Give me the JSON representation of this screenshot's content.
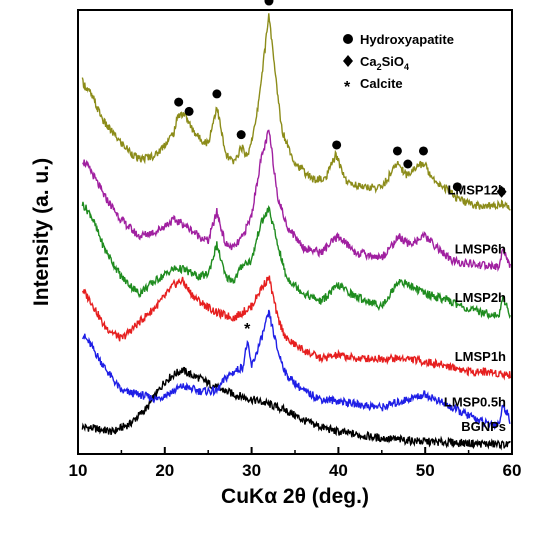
{
  "chart_data": {
    "type": "line",
    "xlabel": "CuKα 2θ (deg.)",
    "ylabel": "Intensity (a. u.)",
    "xlim": [
      10,
      60
    ],
    "y_ticks_shown": false,
    "grid": false,
    "x_ticks": [
      10,
      20,
      30,
      40,
      50,
      60
    ],
    "legend": {
      "placement": "top-right",
      "entries": [
        {
          "marker": "circle",
          "label": "Hydroxyapatite"
        },
        {
          "marker": "diamond",
          "label_main": "Ca",
          "label_sub1": "2",
          "label_mid": "SiO",
          "label_sub2": "4",
          "label": "Ca2SiO4"
        },
        {
          "marker": "asterisk",
          "label": "Calcite"
        }
      ]
    },
    "series": [
      {
        "name": "BGNPs",
        "color": "#000000",
        "x": [
          10.5,
          12,
          14,
          16,
          18,
          20,
          21,
          22,
          23,
          24,
          26,
          28,
          30,
          32,
          34,
          36,
          38,
          40,
          45,
          50,
          55,
          59.8
        ],
        "y": [
          0.08,
          0.07,
          0.05,
          0.1,
          0.2,
          0.36,
          0.4,
          0.43,
          0.4,
          0.38,
          0.32,
          0.28,
          0.25,
          0.22,
          0.18,
          0.12,
          0.08,
          0.05,
          0.01,
          -0.01,
          -0.02,
          -0.03
        ]
      },
      {
        "name": "LMSP0.5h",
        "color": "#1f1fe6",
        "x": [
          10.5,
          11.5,
          13,
          15,
          17,
          19,
          21,
          22,
          24,
          26,
          27,
          28,
          29,
          29.5,
          30,
          31,
          32,
          33,
          34,
          36,
          38,
          40,
          42,
          45,
          48,
          50,
          53,
          55,
          57,
          58.5,
          59,
          59.8
        ],
        "y": [
          0.65,
          0.58,
          0.45,
          0.3,
          0.28,
          0.25,
          0.3,
          0.33,
          0.3,
          0.3,
          0.38,
          0.42,
          0.45,
          0.6,
          0.45,
          0.6,
          0.78,
          0.55,
          0.4,
          0.3,
          0.25,
          0.24,
          0.22,
          0.2,
          0.25,
          0.28,
          0.2,
          0.15,
          0.1,
          0.1,
          0.22,
          0.12
        ]
      },
      {
        "name": "LMSP1h",
        "color": "#e61f1f",
        "x": [
          10.5,
          11.5,
          13,
          15,
          17,
          19,
          20,
          21,
          22,
          23,
          24,
          26,
          28,
          30,
          31,
          32,
          33,
          34,
          36,
          38,
          40,
          42,
          45,
          48,
          50,
          53,
          55,
          57,
          59.8
        ],
        "y": [
          0.92,
          0.85,
          0.7,
          0.62,
          0.72,
          0.82,
          0.88,
          0.95,
          0.98,
          0.9,
          0.85,
          0.78,
          0.75,
          0.82,
          0.92,
          1.0,
          0.75,
          0.62,
          0.55,
          0.5,
          0.52,
          0.5,
          0.5,
          0.5,
          0.48,
          0.45,
          0.42,
          0.42,
          0.4
        ]
      },
      {
        "name": "LMSP2h",
        "color": "#1f8c1f",
        "x": [
          10.5,
          11.5,
          13,
          15,
          17,
          19,
          21,
          22,
          24,
          25,
          26,
          27,
          28,
          29,
          30,
          31,
          32,
          33,
          34,
          36,
          38,
          40,
          42,
          45,
          47,
          50,
          53,
          55,
          57,
          58.5,
          59,
          59.8
        ],
        "y": [
          1.45,
          1.38,
          1.18,
          1.0,
          0.9,
          0.98,
          1.05,
          1.05,
          1.0,
          1.02,
          1.2,
          1.0,
          0.98,
          1.08,
          1.1,
          1.32,
          1.42,
          1.2,
          1.0,
          0.9,
          0.85,
          0.95,
          0.88,
          0.82,
          0.98,
          0.9,
          0.85,
          0.8,
          0.78,
          0.76,
          0.88,
          0.76
        ]
      },
      {
        "name": "LMSP6h",
        "color": "#a020a0",
        "x": [
          10.5,
          11.5,
          13,
          15,
          17,
          19,
          21,
          22,
          24,
          25,
          26,
          27,
          28,
          29,
          30,
          31,
          32,
          33,
          34,
          36,
          38,
          40,
          42,
          45,
          47,
          48,
          50,
          53,
          55,
          57,
          58.5,
          59,
          59.8
        ],
        "y": [
          1.72,
          1.65,
          1.5,
          1.35,
          1.25,
          1.28,
          1.35,
          1.33,
          1.25,
          1.22,
          1.4,
          1.2,
          1.18,
          1.25,
          1.38,
          1.7,
          1.9,
          1.5,
          1.32,
          1.18,
          1.15,
          1.25,
          1.15,
          1.12,
          1.25,
          1.2,
          1.25,
          1.1,
          1.08,
          1.07,
          1.06,
          1.18,
          1.06
        ]
      },
      {
        "name": "LMSP12h",
        "color": "#8c8c1a",
        "x": [
          10.5,
          11.5,
          13,
          15,
          17,
          19,
          21,
          21.6,
          22.3,
          23,
          24,
          25,
          26,
          27,
          28,
          28.8,
          29.5,
          30.5,
          31.5,
          32,
          32.5,
          33.5,
          35,
          37,
          38.5,
          39.7,
          41,
          43,
          45,
          46.8,
          48,
          48.5,
          49.8,
          51,
          53,
          53.7,
          55,
          57,
          58.8,
          59.8
        ],
        "y": [
          2.2,
          2.12,
          1.95,
          1.82,
          1.72,
          1.75,
          1.88,
          2.0,
          2.0,
          1.92,
          1.85,
          1.82,
          2.05,
          1.75,
          1.7,
          1.8,
          1.74,
          1.95,
          2.38,
          2.62,
          2.35,
          1.9,
          1.7,
          1.6,
          1.6,
          1.75,
          1.58,
          1.55,
          1.55,
          1.7,
          1.62,
          1.66,
          1.7,
          1.6,
          1.52,
          1.48,
          1.45,
          1.43,
          1.45,
          1.42
        ]
      }
    ],
    "annotations": [
      {
        "type": "circle",
        "x": 21.6,
        "series": "LMSP12h"
      },
      {
        "type": "circle",
        "x": 22.8,
        "series": "LMSP12h"
      },
      {
        "type": "circle",
        "x": 26.0,
        "series": "LMSP12h"
      },
      {
        "type": "circle",
        "x": 28.8,
        "series": "LMSP12h"
      },
      {
        "type": "circle",
        "x": 32.0,
        "series": "LMSP12h"
      },
      {
        "type": "circle",
        "x": 39.8,
        "series": "LMSP12h"
      },
      {
        "type": "circle",
        "x": 46.8,
        "series": "LMSP12h"
      },
      {
        "type": "circle",
        "x": 48.0,
        "series": "LMSP12h"
      },
      {
        "type": "circle",
        "x": 49.8,
        "series": "LMSP12h"
      },
      {
        "type": "circle",
        "x": 53.7,
        "series": "LMSP12h"
      },
      {
        "type": "diamond",
        "x": 58.8,
        "series": "LMSP12h"
      },
      {
        "type": "asterisk",
        "x": 29.5,
        "series": "LMSP0.5h"
      }
    ]
  }
}
